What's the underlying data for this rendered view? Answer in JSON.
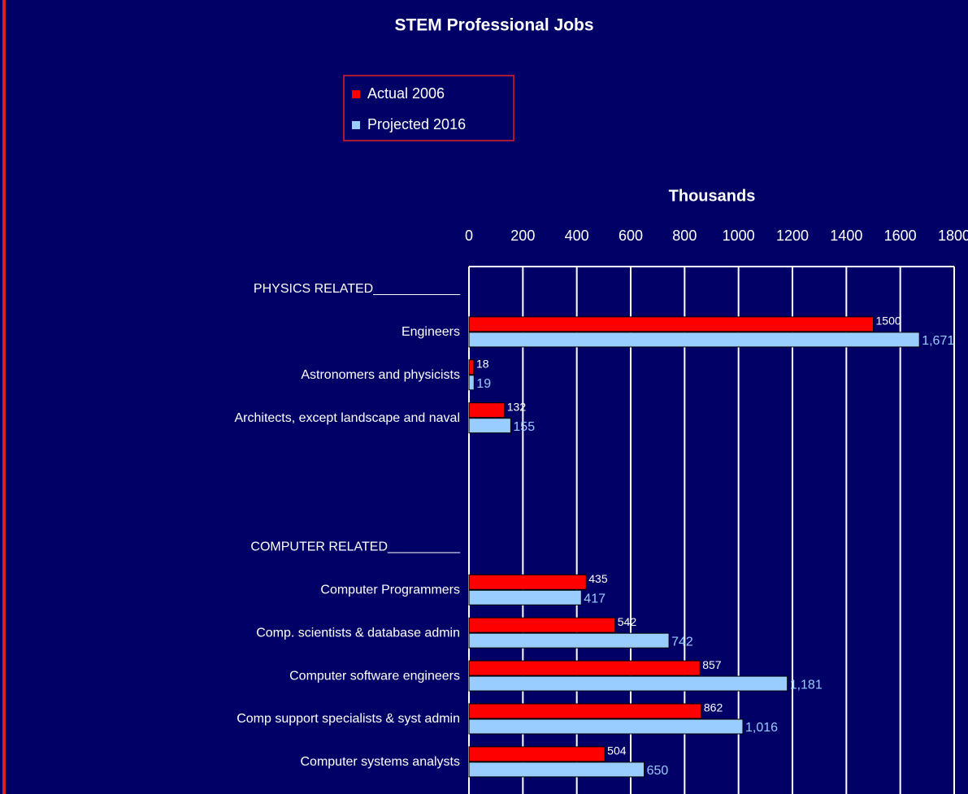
{
  "chart_data": {
    "type": "bar",
    "orientation": "horizontal",
    "title": "STEM Professional Jobs",
    "xlabel": "Thousands",
    "categories": [
      "PHYSICS RELATED____________",
      "Engineers",
      "Astronomers and physicists",
      "Architects, except landscape and naval",
      null,
      null,
      "COMPUTER RELATED__________",
      "Computer Programmers",
      "Comp. scientists & database admin",
      "Computer software engineers",
      "Comp support specialists & syst admin",
      "Computer systems analysts"
    ],
    "series": [
      {
        "name": "Actual 2006",
        "color": "#ff0000",
        "values": [
          null,
          1500,
          18,
          132,
          null,
          null,
          null,
          435,
          542,
          857,
          862,
          504
        ]
      },
      {
        "name": "Projected 2016",
        "color": "#99ccff",
        "values": [
          null,
          1671,
          19,
          155,
          null,
          null,
          null,
          417,
          742,
          1181,
          1016,
          650
        ],
        "value_labels": [
          null,
          "1,671",
          "19",
          "155",
          null,
          null,
          null,
          "417",
          "742",
          "1,181",
          "1,016",
          "650"
        ]
      }
    ],
    "xlim": [
      0,
      1800
    ],
    "xticks": [
      0,
      200,
      400,
      600,
      800,
      1000,
      1200,
      1400,
      1600,
      1800
    ],
    "grid": true,
    "legend": "top"
  }
}
